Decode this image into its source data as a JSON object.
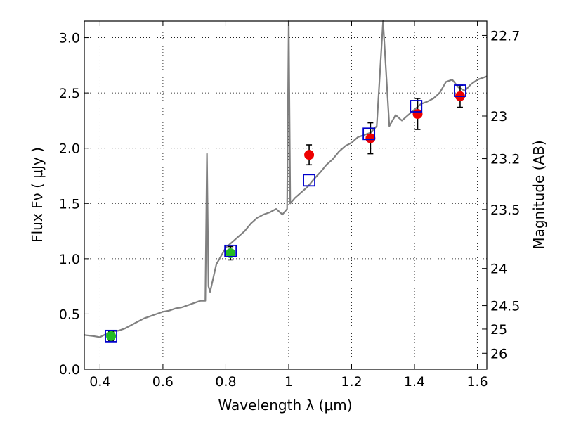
{
  "chart_data": {
    "type": "scatter",
    "xlabel": "Wavelength  λ (μm)",
    "ylabel": "Flux  Fν  ( μJy )",
    "ylabel_right": "Magnitude (AB)",
    "xlim": [
      0.35,
      1.63
    ],
    "ylim": [
      0.0,
      3.15
    ],
    "grid": true,
    "x_ticks": [
      0.4,
      0.6,
      0.8,
      1.0,
      1.2,
      1.4,
      1.6
    ],
    "x_tick_labels": [
      "0.4",
      "0.6",
      "0.8",
      "1",
      "1.2",
      "1.4",
      "1.6"
    ],
    "y_ticks": [
      0.0,
      0.5,
      1.0,
      1.5,
      2.0,
      2.5,
      3.0
    ],
    "y_tick_labels": [
      "0.0",
      "0.5",
      "1.0",
      "1.5",
      "2.0",
      "2.5",
      "3.0"
    ],
    "right_ticks": [
      {
        "label": "22.7",
        "mag": 22.7
      },
      {
        "label": "23",
        "mag": 23.0
      },
      {
        "label": "23.2",
        "mag": 23.2
      },
      {
        "label": "23.5",
        "mag": 23.5
      },
      {
        "label": "24",
        "mag": 24.0
      },
      {
        "label": "24.5",
        "mag": 24.5
      },
      {
        "label": "25",
        "mag": 25.0
      },
      {
        "label": "26",
        "mag": 26.0
      }
    ],
    "colors": {
      "model": "#808080",
      "model_photometry": "#0000cc",
      "green_points": "#22bb22",
      "red_points": "#ee0000",
      "errorbar": "#000000"
    },
    "series": [
      {
        "type": "line",
        "x": [
          0.35,
          0.38,
          0.4,
          0.42,
          0.44,
          0.46,
          0.48,
          0.5,
          0.52,
          0.54,
          0.56,
          0.58,
          0.6,
          0.62,
          0.64,
          0.66,
          0.68,
          0.7,
          0.72,
          0.735,
          0.74,
          0.745,
          0.75,
          0.77,
          0.79,
          0.8,
          0.82,
          0.84,
          0.86,
          0.88,
          0.9,
          0.92,
          0.94,
          0.96,
          0.98,
          0.995,
          1.0,
          1.005,
          1.02,
          1.04,
          1.06,
          1.08,
          1.1,
          1.12,
          1.14,
          1.16,
          1.18,
          1.2,
          1.22,
          1.24,
          1.26,
          1.28,
          1.3,
          1.32,
          1.34,
          1.36,
          1.38,
          1.4,
          1.42,
          1.44,
          1.46,
          1.48,
          1.5,
          1.52,
          1.54,
          1.56,
          1.58,
          1.6,
          1.63
        ],
        "y": [
          0.31,
          0.3,
          0.29,
          0.32,
          0.34,
          0.35,
          0.37,
          0.4,
          0.43,
          0.46,
          0.48,
          0.5,
          0.52,
          0.53,
          0.55,
          0.56,
          0.58,
          0.6,
          0.62,
          0.62,
          1.95,
          0.75,
          0.7,
          0.95,
          1.05,
          1.1,
          1.15,
          1.2,
          1.25,
          1.32,
          1.37,
          1.4,
          1.42,
          1.45,
          1.4,
          1.45,
          3.15,
          1.5,
          1.55,
          1.6,
          1.65,
          1.72,
          1.78,
          1.85,
          1.9,
          1.97,
          2.02,
          2.05,
          2.1,
          2.12,
          2.14,
          2.2,
          3.15,
          2.2,
          2.3,
          2.25,
          2.3,
          2.35,
          2.4,
          2.42,
          2.45,
          2.5,
          2.6,
          2.62,
          2.55,
          2.52,
          2.58,
          2.62,
          2.65
        ]
      },
      {
        "type": "scatter",
        "marker": "square",
        "x": [
          0.435,
          0.815,
          1.065,
          1.255,
          1.405,
          1.545
        ],
        "y": [
          0.3,
          1.07,
          1.71,
          2.13,
          2.38,
          2.52
        ]
      },
      {
        "type": "scatter",
        "marker": "circle",
        "color": "green",
        "x": [
          0.435,
          0.815
        ],
        "y": [
          0.3,
          1.05
        ],
        "err": [
          0.04,
          0.06
        ]
      },
      {
        "type": "scatter",
        "marker": "circle",
        "color": "red",
        "x": [
          1.065,
          1.26,
          1.41,
          1.545
        ],
        "y": [
          1.94,
          2.09,
          2.31,
          2.47
        ],
        "err": [
          0.09,
          0.14,
          0.14,
          0.1
        ]
      }
    ]
  }
}
